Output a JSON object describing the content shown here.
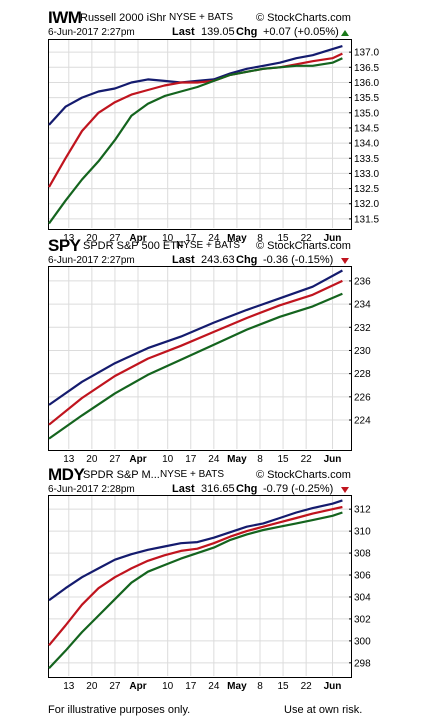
{
  "charts": [
    {
      "symbol": "IWM",
      "name": "Russell 2000 iShr",
      "exchange": "NYSE + BATS",
      "brand": "© StockCharts.com",
      "date": "6-Jun-2017 2:27pm",
      "last_label": "Last",
      "last": "139.05",
      "chg_label": "Chg",
      "chg": "+0.07 (+0.05%)",
      "direction": "up"
    },
    {
      "symbol": "SPY",
      "name": "SPDR S&P 500 ETF",
      "exchange": "NYSE + BATS",
      "brand": "© StockCharts.com",
      "date": "6-Jun-2017 2:27pm",
      "last_label": "Last",
      "last": "243.63",
      "chg_label": "Chg",
      "chg": "-0.36 (-0.15%)",
      "direction": "down"
    },
    {
      "symbol": "MDY",
      "name": "SPDR S&P M...",
      "exchange": "NYSE + BATS",
      "brand": "© StockCharts.com",
      "date": "6-Jun-2017 2:28pm",
      "last_label": "Last",
      "last": "316.65",
      "chg_label": "Chg",
      "chg": "-0.79 (-0.25%)",
      "direction": "down"
    }
  ],
  "footer": {
    "left": "For illustrative purposes only.",
    "right": "Use at own risk."
  },
  "colors": {
    "blue": "#141b6e",
    "red": "#c0141e",
    "green": "#14641e"
  },
  "chart_data": [
    {
      "type": "line",
      "title": "IWM",
      "x": [
        0,
        7,
        14,
        21,
        28,
        35,
        42,
        49,
        56,
        63,
        70,
        77,
        84
      ],
      "x_ticks": [
        {
          "day": 6,
          "label": "13",
          "bold": false
        },
        {
          "day": 13,
          "label": "20",
          "bold": false
        },
        {
          "day": 20,
          "label": "27",
          "bold": false
        },
        {
          "day": 27,
          "label": "Apr",
          "bold": true
        },
        {
          "day": 36,
          "label": "10",
          "bold": false
        },
        {
          "day": 43,
          "label": "17",
          "bold": false
        },
        {
          "day": 50,
          "label": "24",
          "bold": false
        },
        {
          "day": 57,
          "label": "May",
          "bold": true
        },
        {
          "day": 64,
          "label": "8",
          "bold": false
        },
        {
          "day": 71,
          "label": "15",
          "bold": false
        },
        {
          "day": 78,
          "label": "22",
          "bold": false
        },
        {
          "day": 86,
          "label": "Jun",
          "bold": true
        }
      ],
      "xlim": [
        0,
        91
      ],
      "ylim": [
        131.2,
        137.4
      ],
      "y_ticks": [
        131.5,
        132.0,
        132.5,
        133.0,
        133.5,
        134.0,
        134.5,
        135.0,
        135.5,
        136.0,
        136.5,
        137.0
      ],
      "series": [
        {
          "color": "blue",
          "x": [
            0,
            5,
            10,
            15,
            20,
            25,
            30,
            35,
            40,
            45,
            50,
            55,
            60,
            65,
            70,
            75,
            80,
            86,
            89
          ],
          "values": [
            134.6,
            135.2,
            135.5,
            135.7,
            135.8,
            136.0,
            136.1,
            136.05,
            136.0,
            136.05,
            136.1,
            136.3,
            136.45,
            136.55,
            136.65,
            136.8,
            136.9,
            137.1,
            137.2
          ]
        },
        {
          "color": "red",
          "x": [
            0,
            5,
            10,
            15,
            20,
            25,
            30,
            35,
            40,
            45,
            50,
            55,
            60,
            65,
            70,
            75,
            80,
            86,
            89
          ],
          "values": [
            132.55,
            133.5,
            134.4,
            135.0,
            135.35,
            135.6,
            135.75,
            135.9,
            136.0,
            136.0,
            136.05,
            136.25,
            136.35,
            136.45,
            136.5,
            136.6,
            136.7,
            136.8,
            136.95
          ]
        },
        {
          "color": "green",
          "x": [
            0,
            5,
            10,
            15,
            20,
            25,
            30,
            35,
            40,
            45,
            50,
            55,
            60,
            65,
            70,
            75,
            80,
            86,
            89
          ],
          "values": [
            131.35,
            132.1,
            132.8,
            133.4,
            134.1,
            134.9,
            135.3,
            135.55,
            135.7,
            135.85,
            136.05,
            136.25,
            136.35,
            136.45,
            136.5,
            136.55,
            136.55,
            136.65,
            136.8
          ]
        }
      ]
    },
    {
      "type": "line",
      "title": "SPY",
      "x_ticks": [
        {
          "day": 6,
          "label": "13",
          "bold": false
        },
        {
          "day": 13,
          "label": "20",
          "bold": false
        },
        {
          "day": 20,
          "label": "27",
          "bold": false
        },
        {
          "day": 27,
          "label": "Apr",
          "bold": true
        },
        {
          "day": 36,
          "label": "10",
          "bold": false
        },
        {
          "day": 43,
          "label": "17",
          "bold": false
        },
        {
          "day": 50,
          "label": "24",
          "bold": false
        },
        {
          "day": 57,
          "label": "May",
          "bold": true
        },
        {
          "day": 64,
          "label": "8",
          "bold": false
        },
        {
          "day": 71,
          "label": "15",
          "bold": false
        },
        {
          "day": 78,
          "label": "22",
          "bold": false
        },
        {
          "day": 86,
          "label": "Jun",
          "bold": true
        }
      ],
      "xlim": [
        0,
        91
      ],
      "ylim": [
        221.5,
        237.2
      ],
      "y_ticks": [
        224,
        226,
        228,
        230,
        232,
        234,
        236
      ],
      "series": [
        {
          "color": "blue",
          "x": [
            0,
            10,
            20,
            30,
            40,
            50,
            60,
            70,
            80,
            89
          ],
          "values": [
            225.3,
            227.3,
            228.9,
            230.2,
            231.2,
            232.4,
            233.5,
            234.5,
            235.5,
            236.9
          ]
        },
        {
          "color": "red",
          "x": [
            0,
            10,
            20,
            30,
            40,
            50,
            60,
            70,
            80,
            89
          ],
          "values": [
            223.6,
            225.9,
            227.8,
            229.3,
            230.4,
            231.6,
            232.8,
            233.9,
            234.8,
            236.0
          ]
        },
        {
          "color": "green",
          "x": [
            0,
            10,
            20,
            30,
            40,
            50,
            60,
            70,
            80,
            89
          ],
          "values": [
            222.4,
            224.4,
            226.3,
            227.9,
            229.2,
            230.5,
            231.8,
            232.9,
            233.8,
            234.9
          ]
        }
      ]
    },
    {
      "type": "line",
      "title": "MDY",
      "x_ticks": [
        {
          "day": 6,
          "label": "13",
          "bold": false
        },
        {
          "day": 13,
          "label": "20",
          "bold": false
        },
        {
          "day": 20,
          "label": "27",
          "bold": false
        },
        {
          "day": 27,
          "label": "Apr",
          "bold": true
        },
        {
          "day": 36,
          "label": "10",
          "bold": false
        },
        {
          "day": 43,
          "label": "17",
          "bold": false
        },
        {
          "day": 50,
          "label": "24",
          "bold": false
        },
        {
          "day": 57,
          "label": "May",
          "bold": true
        },
        {
          "day": 64,
          "label": "8",
          "bold": false
        },
        {
          "day": 71,
          "label": "15",
          "bold": false
        },
        {
          "day": 78,
          "label": "22",
          "bold": false
        },
        {
          "day": 86,
          "label": "Jun",
          "bold": true
        }
      ],
      "xlim": [
        0,
        91
      ],
      "ylim": [
        296.8,
        313.2
      ],
      "y_ticks": [
        298,
        300,
        302,
        304,
        306,
        308,
        310,
        312
      ],
      "series": [
        {
          "color": "blue",
          "x": [
            0,
            5,
            10,
            15,
            20,
            25,
            30,
            35,
            40,
            45,
            50,
            55,
            60,
            65,
            70,
            75,
            80,
            86,
            89
          ],
          "values": [
            303.7,
            304.8,
            305.8,
            306.6,
            307.4,
            307.9,
            308.3,
            308.6,
            308.9,
            309.0,
            309.4,
            309.9,
            310.4,
            310.7,
            311.2,
            311.7,
            312.1,
            312.5,
            312.8
          ]
        },
        {
          "color": "red",
          "x": [
            0,
            5,
            10,
            15,
            20,
            25,
            30,
            35,
            40,
            45,
            50,
            55,
            60,
            65,
            70,
            75,
            80,
            86,
            89
          ],
          "values": [
            299.6,
            301.4,
            303.3,
            304.8,
            305.8,
            306.6,
            307.3,
            307.8,
            308.2,
            308.4,
            308.9,
            309.5,
            310.0,
            310.4,
            310.8,
            311.2,
            311.6,
            312.0,
            312.2
          ]
        },
        {
          "color": "green",
          "x": [
            0,
            5,
            10,
            15,
            20,
            25,
            30,
            35,
            40,
            45,
            50,
            55,
            60,
            65,
            70,
            75,
            80,
            86,
            89
          ],
          "values": [
            297.5,
            299.1,
            300.8,
            302.3,
            303.8,
            305.3,
            306.3,
            306.9,
            307.5,
            308.0,
            308.5,
            309.2,
            309.7,
            310.1,
            310.4,
            310.7,
            311.0,
            311.4,
            311.7
          ]
        }
      ]
    }
  ]
}
